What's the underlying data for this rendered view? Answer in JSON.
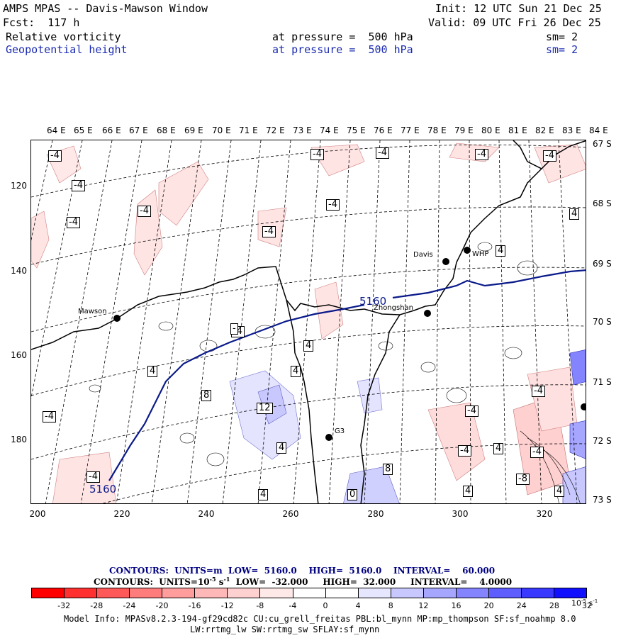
{
  "header": {
    "title": "AMPS MPAS -- Davis-Mawson Window",
    "forecast": "Fcst:  117 h",
    "init": "Init: 12 UTC Sun 21 Dec 25",
    "valid": "Valid: 09 UTC Fri 26 Dec 25",
    "field1": {
      "name": "Relative vorticity",
      "level": "at pressure =  500 hPa",
      "smoothing": "sm= 2"
    },
    "field2": {
      "name": "Geopotential height",
      "level": "at pressure =  500 hPa",
      "smoothing": "sm= 2"
    }
  },
  "map": {
    "top_axis_labels": [
      "64 E",
      "65 E",
      "66 E",
      "67 E",
      "68 E",
      "69 E",
      "70 E",
      "71 E",
      "72 E",
      "73 E",
      "74 E",
      "75 E",
      "76 E",
      "77 E",
      "78 E",
      "79 E",
      "80 E",
      "81 E",
      "82 E",
      "83 E",
      "84 E"
    ],
    "right_axis_labels": [
      "67 S",
      "68 S",
      "69 S",
      "70 S",
      "71 S",
      "72 S",
      "73 S"
    ],
    "left_axis_labels": [
      "120",
      "140",
      "160",
      "180"
    ],
    "bottom_axis_labels": [
      "200",
      "220",
      "240",
      "260",
      "280",
      "300",
      "320"
    ],
    "stations": [
      {
        "name": "Mawson"
      },
      {
        "name": "Davis"
      },
      {
        "name": "WHP"
      },
      {
        "name": "Zhongshan"
      },
      {
        "name": "G3"
      }
    ],
    "height_labels": [
      "5160",
      "5160"
    ],
    "vorticity_labels": [
      "-4",
      "-4",
      "-4",
      "-4",
      "-4",
      "-4",
      "-4",
      "-4",
      "-4",
      "-4",
      "-4",
      "-4",
      "-4",
      "-4",
      "-4",
      "-4",
      "-4",
      "-8",
      "4",
      "4",
      "4",
      "4",
      "4",
      "4",
      "4",
      "4",
      "4",
      "4",
      "8",
      "8",
      "12",
      "-",
      "0"
    ]
  },
  "contours": {
    "line1": {
      "label": "CONTOURS:",
      "units": "UNITS=m",
      "low": "LOW=  5160.0",
      "high": "HIGH=  5160.0",
      "interval": "INTERVAL=    60.000"
    },
    "line2": {
      "label": "CONTOURS:",
      "units": "UNITS=10",
      "units_exp": "-5",
      "units_s": "s",
      "units_sexp": "-1",
      "low": "LOW=  -32.000",
      "high": "HIGH=  32.000",
      "interval": "INTERVAL=    4.0000"
    }
  },
  "colorbar": {
    "colors": [
      "#ff0000",
      "#ff3030",
      "#ff5858",
      "#ff7c7c",
      "#ff9c9c",
      "#ffb8b8",
      "#ffd0d0",
      "#ffe8e8",
      "#ffffff",
      "#ffffff",
      "#e6e6ff",
      "#c8c8ff",
      "#a6a6ff",
      "#8484ff",
      "#5e5eff",
      "#3838ff",
      "#1010ff"
    ],
    "labels": [
      "-32",
      "-28",
      "-24",
      "-20",
      "-16",
      "-12",
      "-8",
      "-4",
      "0",
      "4",
      "8",
      "12",
      "16",
      "20",
      "24",
      "28",
      "32"
    ],
    "unit_base": "10",
    "unit_exp": "-5",
    "unit_s": "s",
    "unit_sexp": "-1"
  },
  "model_info": {
    "line1": "Model Info: MPASv8.2.3-194-gf29cd82c CU:cu_grell_freitas PBL:bl_mynn MP:mp_thompson SF:sf_noahmp 8.0",
    "line2": "LW:rrtmg_lw SW:rrtmg_sw SFLAY:sf_mynn"
  }
}
